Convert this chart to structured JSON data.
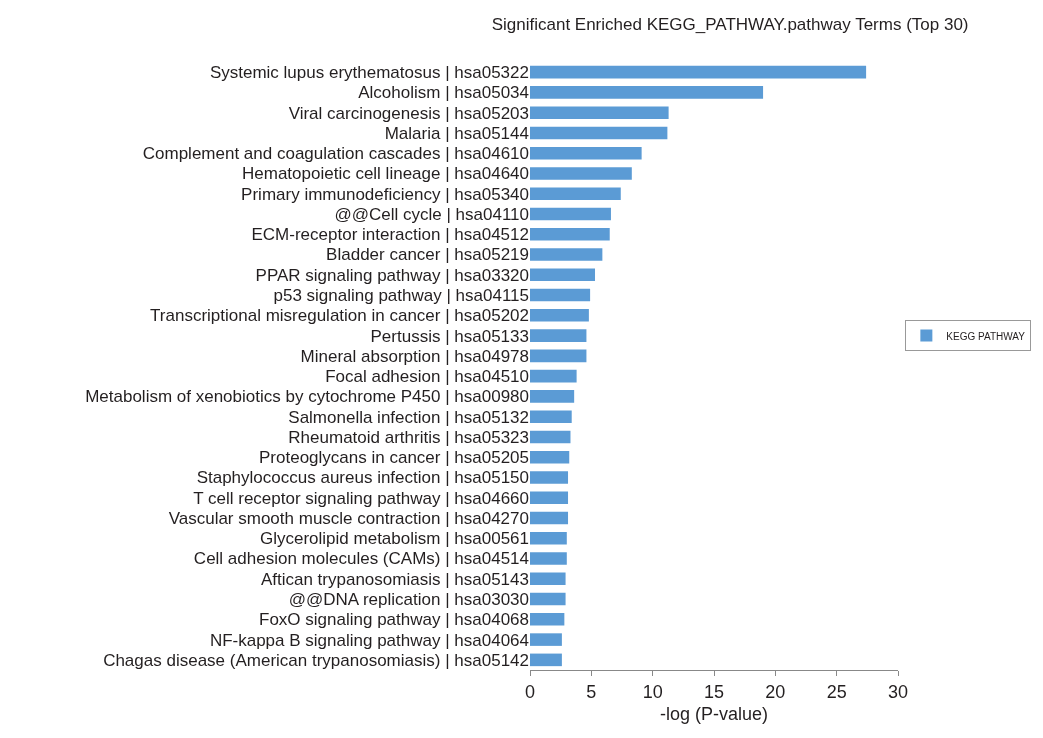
{
  "chart_data": {
    "type": "bar",
    "orientation": "horizontal",
    "title": "Significant Enriched KEGG_PATHWAY.pathway Terms (Top 30)",
    "xlabel": "-log (P-value)",
    "categories": [
      "Systemic lupus erythematosus | hsa05322",
      "Alcoholism | hsa05034",
      "Viral carcinogenesis | hsa05203",
      "Malaria | hsa05144",
      "Complement and coagulation cascades | hsa04610",
      "Hematopoietic cell lineage | hsa04640",
      "Primary immunodeficiency | hsa05340",
      "@@Cell cycle | hsa04110",
      "ECM-receptor interaction | hsa04512",
      "Bladder cancer | hsa05219",
      "PPAR signaling pathway | hsa03320",
      "p53 signaling pathway | hsa04115",
      "Transcriptional misregulation in cancer | hsa05202",
      "Pertussis | hsa05133",
      "Mineral absorption | hsa04978",
      "Focal adhesion | hsa04510",
      "Metabolism of xenobiotics by cytochrome P450 | hsa00980",
      "Salmonella infection | hsa05132",
      "Rheumatoid arthritis | hsa05323",
      "Proteoglycans in cancer | hsa05205",
      "Staphylococcus aureus infection | hsa05150",
      "T cell receptor signaling pathway | hsa04660",
      "Vascular smooth muscle contraction | hsa04270",
      "Glycerolipid metabolism | hsa00561",
      "Cell adhesion molecules (CAMs) | hsa04514",
      "Aftican trypanosomiasis | hsa05143",
      "@@DNA replication | hsa03030",
      "FoxO signaling pathway | hsa04068",
      "NF-kappa B signaling pathway | hsa04064",
      "Chagas disease (American trypanosomiasis) | hsa05142"
    ],
    "series": [
      {
        "name": "KEGG PATHWAY",
        "color": "#5b9bd5",
        "values": [
          27.4,
          19.0,
          11.3,
          11.2,
          9.1,
          8.3,
          7.4,
          6.6,
          6.5,
          5.9,
          5.3,
          4.9,
          4.8,
          4.6,
          4.6,
          3.8,
          3.6,
          3.4,
          3.3,
          3.2,
          3.1,
          3.1,
          3.1,
          3.0,
          3.0,
          2.9,
          2.9,
          2.8,
          2.6,
          2.6
        ]
      }
    ],
    "xlim": [
      0,
      30
    ],
    "xticks": [
      0,
      5,
      10,
      15,
      20,
      25,
      30
    ],
    "grid": false,
    "legend": "right"
  }
}
